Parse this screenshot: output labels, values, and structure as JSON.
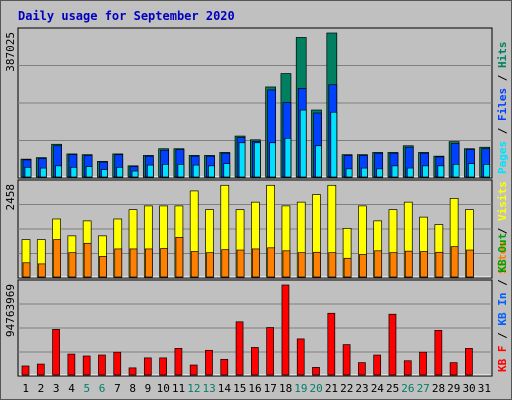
{
  "chart_data": [
    {
      "type": "bar",
      "title": "Daily usage for September 2020",
      "ylabel_parts": [
        {
          "text": "Pages",
          "color": "#00e0ff"
        },
        {
          "text": " / ",
          "color": "#000000"
        },
        {
          "text": "Files",
          "color": "#0040ff"
        },
        {
          "text": " / ",
          "color": "#000000"
        },
        {
          "text": "Hits",
          "color": "#008060"
        }
      ],
      "ymax_label": "387025",
      "ymax": 387025,
      "categories": [
        "1",
        "2",
        "3",
        "4",
        "5",
        "6",
        "7",
        "8",
        "9",
        "10",
        "11",
        "12",
        "13",
        "14",
        "15",
        "16",
        "17",
        "18",
        "19",
        "20",
        "21",
        "22",
        "23",
        "24",
        "25",
        "26",
        "27",
        "28",
        "29",
        "30",
        "31"
      ],
      "weekend_days": [
        "5",
        "6",
        "12",
        "13",
        "19",
        "20",
        "26",
        "27"
      ],
      "series": [
        {
          "name": "Hits",
          "color": "#008060",
          "values": [
            48000,
            52000,
            88000,
            62000,
            60000,
            42000,
            62000,
            30000,
            58000,
            76000,
            76000,
            58000,
            58000,
            66000,
            110000,
            100000,
            242000,
            278000,
            375000,
            180000,
            387000,
            60000,
            60000,
            66000,
            66000,
            84000,
            66000,
            56000,
            95000,
            76000,
            80000
          ]
        },
        {
          "name": "Files",
          "color": "#0040ff",
          "values": [
            46000,
            50000,
            84000,
            60000,
            58000,
            40000,
            60000,
            28000,
            56000,
            72000,
            74000,
            56000,
            56000,
            64000,
            106000,
            96000,
            234000,
            200000,
            238000,
            172000,
            248000,
            58000,
            58000,
            64000,
            64000,
            80000,
            64000,
            54000,
            90000,
            74000,
            76000
          ]
        },
        {
          "name": "Pages",
          "color": "#00e0ff",
          "values": [
            26000,
            24000,
            30000,
            26000,
            28000,
            20000,
            26000,
            16000,
            32000,
            34000,
            34000,
            32000,
            30000,
            36000,
            92000,
            92000,
            92000,
            104000,
            180000,
            84000,
            174000,
            22000,
            24000,
            22000,
            30000,
            24000,
            30000,
            30000,
            34000,
            36000,
            34000
          ]
        }
      ]
    },
    {
      "type": "bar",
      "ylabel_parts": [
        {
          "text": "Sites",
          "color": "#ff8000"
        },
        {
          "text": " / ",
          "color": "#000000"
        },
        {
          "text": "Visits",
          "color": "#ffff00"
        }
      ],
      "ymax_label": "2458",
      "ymax": 2458,
      "categories": [
        "1",
        "2",
        "3",
        "4",
        "5",
        "6",
        "7",
        "8",
        "9",
        "10",
        "11",
        "12",
        "13",
        "14",
        "15",
        "16",
        "17",
        "18",
        "19",
        "20",
        "21",
        "22",
        "23",
        "24",
        "25",
        "26",
        "27",
        "28",
        "29",
        "30",
        "31"
      ],
      "series": [
        {
          "name": "Visits",
          "color": "#ffff00",
          "values": [
            1000,
            1000,
            1550,
            1100,
            1500,
            1100,
            1550,
            1800,
            1900,
            1900,
            1900,
            2300,
            1800,
            2450,
            1800,
            2000,
            2450,
            1900,
            2000,
            2200,
            2450,
            1300,
            1900,
            1500,
            1800,
            2000,
            1600,
            1400,
            2100,
            1800,
            0
          ]
        },
        {
          "name": "Sites",
          "color": "#ff8000",
          "values": [
            380,
            350,
            1000,
            650,
            900,
            550,
            750,
            750,
            750,
            760,
            1060,
            680,
            650,
            730,
            720,
            750,
            780,
            700,
            650,
            660,
            650,
            500,
            600,
            700,
            650,
            690,
            680,
            660,
            810,
            720,
            0
          ]
        }
      ]
    },
    {
      "type": "bar",
      "ylabel_parts": [
        {
          "text": "KB F",
          "color": "#ff0000"
        },
        {
          "text": " / ",
          "color": "#000000"
        },
        {
          "text": "KB In",
          "color": "#0060ff"
        },
        {
          "text": " / ",
          "color": "#000000"
        },
        {
          "text": "KB Out",
          "color": "#00a000"
        }
      ],
      "ymax_label": "94763969",
      "ymax": 94763969,
      "categories": [
        "1",
        "2",
        "3",
        "4",
        "5",
        "6",
        "7",
        "8",
        "9",
        "10",
        "11",
        "12",
        "13",
        "14",
        "15",
        "16",
        "17",
        "18",
        "19",
        "20",
        "21",
        "22",
        "23",
        "24",
        "25",
        "26",
        "27",
        "28",
        "29",
        "30",
        "31"
      ],
      "series": [
        {
          "name": "KB F",
          "color": "#ff0000",
          "values": [
            9500000,
            11500000,
            48000000,
            22000000,
            20000000,
            21000000,
            24000000,
            7500000,
            18000000,
            18000000,
            28000000,
            10500000,
            26000000,
            16500000,
            56000000,
            29000000,
            50000000,
            94763969,
            38000000,
            8000000,
            65000000,
            32000000,
            13000000,
            21000000,
            64000000,
            15000000,
            24000000,
            47000000,
            13000000,
            28000000,
            0
          ]
        }
      ]
    }
  ]
}
